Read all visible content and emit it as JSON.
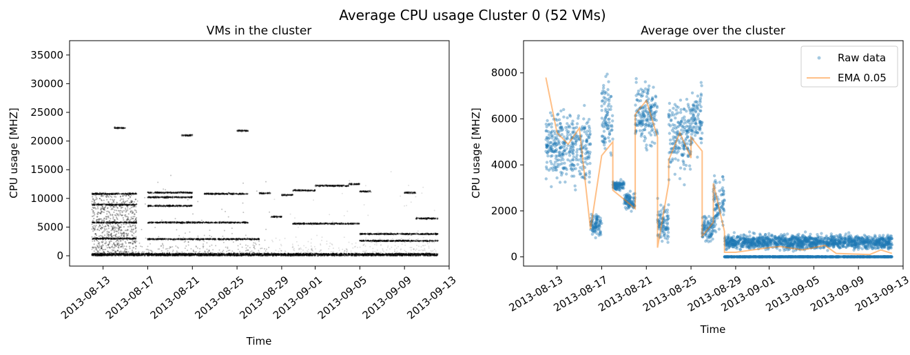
{
  "figure": {
    "title": "Average CPU usage Cluster 0 (52 VMs)"
  },
  "chart_data": [
    {
      "type": "scatter",
      "title": "VMs in the cluster",
      "xlabel": "Time",
      "ylabel": "CPU usage [MHZ]",
      "x_range": [
        "2013-08-10",
        "2013-09-13"
      ],
      "x_ticks": [
        "2013-08-13",
        "2013-08-17",
        "2013-08-21",
        "2013-08-25",
        "2013-08-29",
        "2013-09-01",
        "2013-09-05",
        "2013-09-09",
        "2013-09-13"
      ],
      "y_range": [
        -1800,
        37500
      ],
      "y_ticks": [
        0,
        5000,
        10000,
        15000,
        20000,
        25000,
        30000,
        35000
      ],
      "tick_label_rotation": 40,
      "grid": false,
      "marker_color": "#000000",
      "notes": "Dense near-black scatter of all 52 VMs; persistent horizontal bands per VM",
      "bands": [
        {
          "start": "2013-08-12",
          "end": "2013-09-12",
          "y": 300
        },
        {
          "start": "2013-08-12",
          "end": "2013-09-12",
          "y": 100
        },
        {
          "start": "2013-08-12",
          "end": "2013-08-16",
          "y": 10800
        },
        {
          "start": "2013-08-12",
          "end": "2013-08-16",
          "y": 8900
        },
        {
          "start": "2013-08-12",
          "end": "2013-08-16",
          "y": 5800
        },
        {
          "start": "2013-08-12",
          "end": "2013-08-16",
          "y": 3000
        },
        {
          "start": "2013-08-14",
          "end": "2013-08-15",
          "y": 22300
        },
        {
          "start": "2013-08-17",
          "end": "2013-08-21",
          "y": 11000
        },
        {
          "start": "2013-08-17",
          "end": "2013-08-21",
          "y": 10200
        },
        {
          "start": "2013-08-17",
          "end": "2013-08-21",
          "y": 8700
        },
        {
          "start": "2013-08-17",
          "end": "2013-08-26",
          "y": 5800
        },
        {
          "start": "2013-08-17",
          "end": "2013-08-27",
          "y": 2900
        },
        {
          "start": "2013-08-20",
          "end": "2013-08-21",
          "y": 21000
        },
        {
          "start": "2013-08-22",
          "end": "2013-08-26",
          "y": 10800
        },
        {
          "start": "2013-08-25",
          "end": "2013-08-26",
          "y": 21800
        },
        {
          "start": "2013-08-27",
          "end": "2013-08-28",
          "y": 10900
        },
        {
          "start": "2013-08-28",
          "end": "2013-08-29",
          "y": 6800
        },
        {
          "start": "2013-08-29",
          "end": "2013-08-30",
          "y": 10600
        },
        {
          "start": "2013-08-30",
          "end": "2013-09-01",
          "y": 11400
        },
        {
          "start": "2013-08-30",
          "end": "2013-09-05",
          "y": 5600
        },
        {
          "start": "2013-09-01",
          "end": "2013-09-04",
          "y": 12200
        },
        {
          "start": "2013-09-04",
          "end": "2013-09-05",
          "y": 12500
        },
        {
          "start": "2013-09-05",
          "end": "2013-09-06",
          "y": 11200
        },
        {
          "start": "2013-09-05",
          "end": "2013-09-12",
          "y": 3800
        },
        {
          "start": "2013-09-05",
          "end": "2013-09-12",
          "y": 2600
        },
        {
          "start": "2013-09-09",
          "end": "2013-09-10",
          "y": 11000
        },
        {
          "start": "2013-09-10",
          "end": "2013-09-12",
          "y": 6500
        }
      ]
    },
    {
      "type": "scatter",
      "title": "Average over the cluster",
      "xlabel": "Time",
      "ylabel": "CPU usage [MHZ]",
      "x_range": [
        "2013-08-10",
        "2013-09-13"
      ],
      "x_ticks": [
        "2013-08-13",
        "2013-08-17",
        "2013-08-21",
        "2013-08-25",
        "2013-08-29",
        "2013-09-01",
        "2013-09-05",
        "2013-09-09",
        "2013-09-13"
      ],
      "y_range": [
        -400,
        9400
      ],
      "y_ticks": [
        0,
        2000,
        4000,
        6000,
        8000
      ],
      "tick_label_rotation": 30,
      "grid": false,
      "legend_position": "top-right",
      "series": [
        {
          "name": "Raw data",
          "style": "points",
          "color": "#1f77b4",
          "alpha": 0.4,
          "segments": [
            {
              "start": "2013-08-12",
              "end": "2013-08-16",
              "mean": 4800,
              "spread": 2200
            },
            {
              "start": "2013-08-16",
              "end": "2013-08-17",
              "mean": 1400,
              "spread": 700
            },
            {
              "start": "2013-08-17",
              "end": "2013-08-18",
              "mean": 6000,
              "spread": 2300
            },
            {
              "start": "2013-08-18",
              "end": "2013-08-19",
              "mean": 3100,
              "spread": 300
            },
            {
              "start": "2013-08-19",
              "end": "2013-08-20",
              "mean": 2400,
              "spread": 600
            },
            {
              "start": "2013-08-20",
              "end": "2013-08-22",
              "mean": 6200,
              "spread": 1800
            },
            {
              "start": "2013-08-22",
              "end": "2013-08-23",
              "mean": 1500,
              "spread": 1200
            },
            {
              "start": "2013-08-23",
              "end": "2013-08-25",
              "mean": 5200,
              "spread": 2200
            },
            {
              "start": "2013-08-25",
              "end": "2013-08-26",
              "mean": 6000,
              "spread": 1800
            },
            {
              "start": "2013-08-26",
              "end": "2013-08-27",
              "mean": 1200,
              "spread": 800
            },
            {
              "start": "2013-08-27",
              "end": "2013-08-28",
              "mean": 2200,
              "spread": 1600
            },
            {
              "start": "2013-08-28",
              "end": "2013-09-12",
              "mean": 650,
              "spread": 450
            },
            {
              "start": "2013-08-28",
              "end": "2013-09-12",
              "mean": 0,
              "spread": 20
            }
          ]
        },
        {
          "name": "EMA 0.05",
          "style": "line",
          "color": "#ff7f0e",
          "alpha": 0.5,
          "points": [
            [
              "2013-08-12",
              7800
            ],
            [
              "2013-08-13",
              5400
            ],
            [
              "2013-08-14",
              4900
            ],
            [
              "2013-08-15",
              5600
            ],
            [
              "2013-08-16",
              1200
            ],
            [
              "2013-08-17",
              4400
            ],
            [
              "2013-08-18",
              5000
            ],
            [
              "2013-08-18",
              2900
            ],
            [
              "2013-08-19",
              2500
            ],
            [
              "2013-08-20",
              2100
            ],
            [
              "2013-08-20",
              6200
            ],
            [
              "2013-08-21",
              6800
            ],
            [
              "2013-08-22",
              5200
            ],
            [
              "2013-08-22",
              400
            ],
            [
              "2013-08-23",
              3200
            ],
            [
              "2013-08-23",
              4200
            ],
            [
              "2013-08-24",
              5400
            ],
            [
              "2013-08-25",
              4300
            ],
            [
              "2013-08-25",
              5200
            ],
            [
              "2013-08-26",
              4600
            ],
            [
              "2013-08-26",
              900
            ],
            [
              "2013-08-27",
              1500
            ],
            [
              "2013-08-27",
              3200
            ],
            [
              "2013-08-28",
              1100
            ],
            [
              "2013-08-28",
              200
            ],
            [
              "2013-08-29",
              200
            ],
            [
              "2013-09-01",
              400
            ],
            [
              "2013-09-02",
              450
            ],
            [
              "2013-09-04",
              300
            ],
            [
              "2013-09-06",
              500
            ],
            [
              "2013-09-07",
              150
            ],
            [
              "2013-09-10",
              100
            ],
            [
              "2013-09-11",
              300
            ],
            [
              "2013-09-12",
              150
            ]
          ]
        }
      ]
    }
  ]
}
